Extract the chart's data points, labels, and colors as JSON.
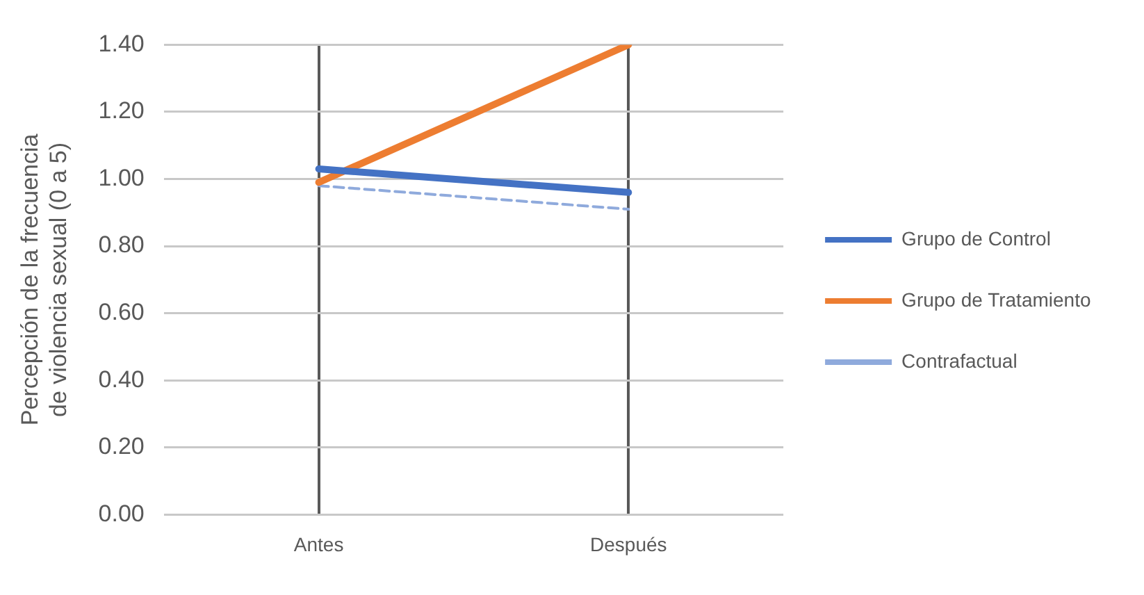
{
  "chart_data": {
    "type": "line",
    "ylabel": "Percepción de la frecuencia de violencia sexual (0 a 5)",
    "categories": [
      "Antes",
      "Después"
    ],
    "series": [
      {
        "name": "Grupo de Control",
        "color": "#4472c4",
        "values": [
          1.03,
          0.96
        ]
      },
      {
        "name": "Grupo de Tratamiento",
        "color": "#ed7d31",
        "values": [
          0.99,
          1.4
        ]
      },
      {
        "name": "Contrafactual",
        "color": "#8faadc",
        "values": [
          0.98,
          0.91
        ],
        "line_style": "dashed"
      }
    ],
    "ylim": [
      0,
      1.4
    ],
    "yticks": [
      {
        "value": 0,
        "label": "0.00"
      },
      {
        "value": 0.2,
        "label": "0.20"
      },
      {
        "value": 0.4,
        "label": "0.40"
      },
      {
        "value": 0.6,
        "label": "0.60"
      },
      {
        "value": 0.8,
        "label": "0.80"
      },
      {
        "value": 1,
        "label": "1.00"
      },
      {
        "value": 1.2,
        "label": "1.20"
      },
      {
        "value": 1.4,
        "label": "1.40"
      }
    ],
    "grid": true,
    "legend": "right",
    "marker": "none"
  }
}
